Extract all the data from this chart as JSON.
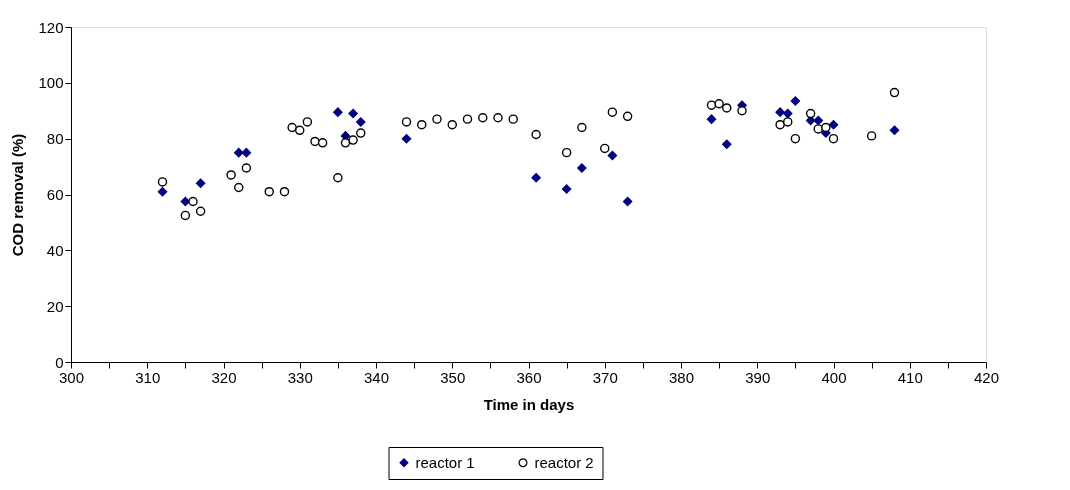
{
  "chart_data": {
    "type": "scatter",
    "xlabel": "Time in days",
    "ylabel": "COD removal (%)",
    "xlim": [
      300,
      420
    ],
    "ylim": [
      0,
      120
    ],
    "xticks": [
      300,
      {
        "value": 305,
        "label": null
      },
      310,
      {
        "value": 315,
        "label": null
      },
      320,
      {
        "value": 325,
        "label": null
      },
      330,
      {
        "value": 335,
        "label": null
      },
      340,
      {
        "value": 345,
        "label": null
      },
      350,
      {
        "value": 355,
        "label": null
      },
      360,
      {
        "value": 365,
        "label": null
      },
      370,
      {
        "value": 375,
        "label": null
      },
      380,
      {
        "value": 385,
        "label": null
      },
      390,
      {
        "value": 395,
        "label": null
      },
      400,
      {
        "value": 405,
        "label": null
      },
      410,
      {
        "value": 415,
        "label": null
      },
      420
    ],
    "yticks": [
      0,
      20,
      40,
      60,
      80,
      100,
      120
    ],
    "grid": false,
    "legend": "bottom",
    "series": [
      {
        "name": "reactor 1",
        "color": "#000080",
        "marker": "diamond",
        "x": [
          312,
          315,
          317,
          322,
          323,
          335,
          336,
          337,
          338,
          344,
          361,
          365,
          367,
          371,
          373,
          384,
          386,
          388,
          393,
          394,
          395,
          397,
          398,
          399,
          400,
          408
        ],
        "values": [
          61,
          57.5,
          64,
          75,
          75,
          89.5,
          81,
          89,
          86,
          80,
          66,
          62,
          69.5,
          74,
          57.5,
          87,
          78,
          92,
          89.5,
          89,
          93.5,
          86.5,
          86.5,
          82,
          85,
          83
        ]
      },
      {
        "name": "reactor 2",
        "color": "#000000",
        "marker": "circle",
        "x": [
          312,
          315,
          316,
          317,
          321,
          322,
          323,
          326,
          328,
          329,
          330,
          331,
          332,
          333,
          335,
          336,
          337,
          338,
          344,
          346,
          348,
          350,
          352,
          354,
          356,
          358,
          361,
          365,
          367,
          370,
          371,
          373,
          384,
          385,
          386,
          388,
          393,
          394,
          395,
          397,
          398,
          399,
          400,
          405,
          408
        ],
        "values": [
          64.5,
          52.5,
          57.5,
          54,
          67,
          62.5,
          69.5,
          61,
          61,
          84,
          83,
          86,
          79,
          78.5,
          66,
          78.5,
          79.5,
          82,
          86,
          85,
          87,
          85,
          87,
          87.5,
          87.5,
          87,
          81.5,
          75,
          84,
          76.5,
          89.5,
          88,
          92,
          92.5,
          91,
          90,
          85,
          86,
          80,
          89,
          83.5,
          84,
          80,
          81,
          96.5
        ]
      }
    ]
  }
}
